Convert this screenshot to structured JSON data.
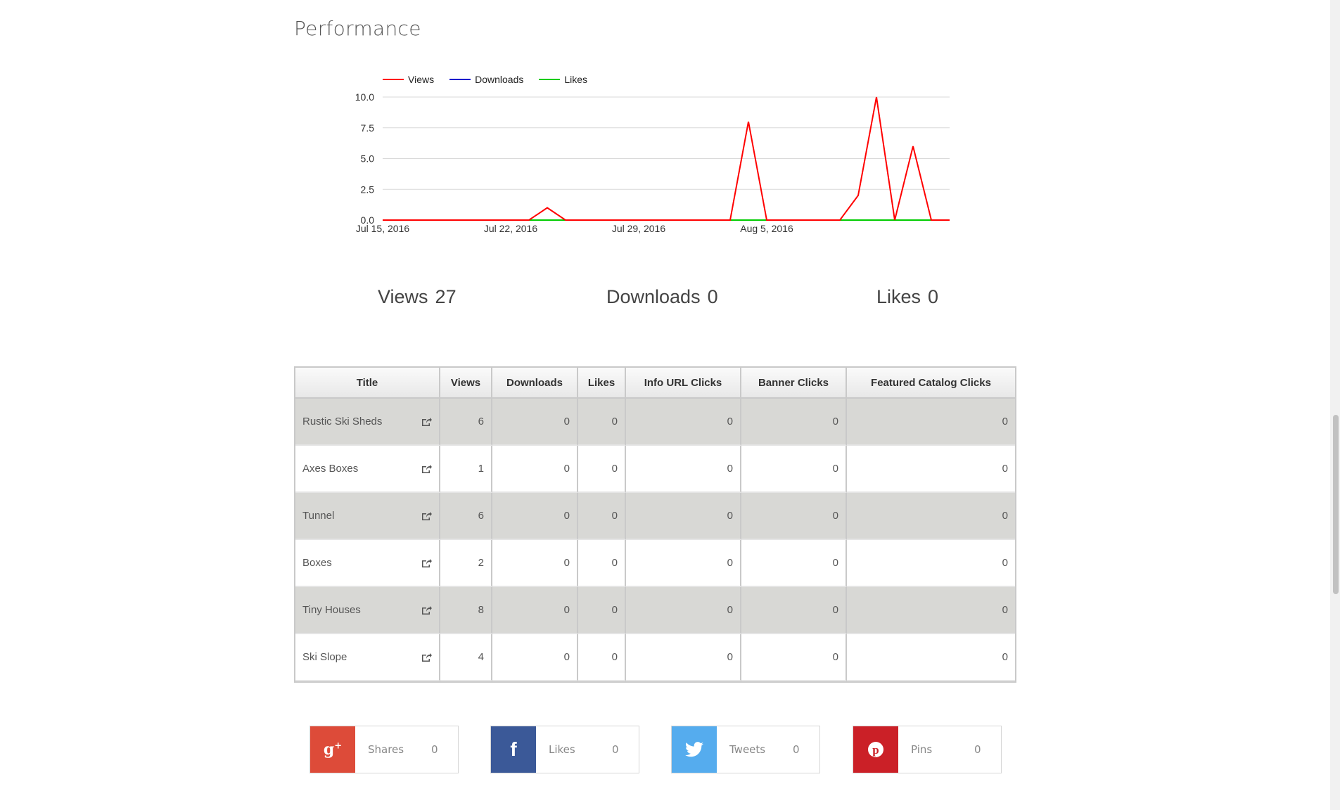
{
  "page": {
    "title": "Performance"
  },
  "chart_data": {
    "type": "line",
    "x_tick_labels": [
      "Jul 15, 2016",
      "Jul 22, 2016",
      "Jul 29, 2016",
      "Aug 5, 2016"
    ],
    "x": [
      "2016-07-15",
      "2016-07-16",
      "2016-07-17",
      "2016-07-18",
      "2016-07-19",
      "2016-07-20",
      "2016-07-21",
      "2016-07-22",
      "2016-07-23",
      "2016-07-24",
      "2016-07-25",
      "2016-07-26",
      "2016-07-27",
      "2016-07-28",
      "2016-07-29",
      "2016-07-30",
      "2016-07-31",
      "2016-08-01",
      "2016-08-02",
      "2016-08-03",
      "2016-08-04",
      "2016-08-05",
      "2016-08-06",
      "2016-08-07",
      "2016-08-08",
      "2016-08-09",
      "2016-08-10",
      "2016-08-11",
      "2016-08-12",
      "2016-08-13",
      "2016-08-14",
      "2016-08-15"
    ],
    "y_ticks": [
      "0.0",
      "2.5",
      "5.0",
      "7.5",
      "10.0"
    ],
    "ylim": [
      0,
      10
    ],
    "series": [
      {
        "name": "Views",
        "color": "#ff0000",
        "values": [
          0,
          0,
          0,
          0,
          0,
          0,
          0,
          0,
          0,
          1,
          0,
          0,
          0,
          0,
          0,
          0,
          0,
          0,
          0,
          0,
          8,
          0,
          0,
          0,
          0,
          0,
          2,
          10,
          0,
          6,
          0,
          0
        ]
      },
      {
        "name": "Downloads",
        "color": "#0000cc",
        "values": [
          0,
          0,
          0,
          0,
          0,
          0,
          0,
          0,
          0,
          0,
          0,
          0,
          0,
          0,
          0,
          0,
          0,
          0,
          0,
          0,
          0,
          0,
          0,
          0,
          0,
          0,
          0,
          0,
          0,
          0,
          0,
          0
        ]
      },
      {
        "name": "Likes",
        "color": "#00cc00",
        "values": [
          0,
          0,
          0,
          0,
          0,
          0,
          0,
          0,
          0,
          0,
          0,
          0,
          0,
          0,
          0,
          0,
          0,
          0,
          0,
          0,
          0,
          0,
          0,
          0,
          0,
          0,
          0,
          0,
          0,
          0,
          0,
          0
        ]
      }
    ],
    "legend": "top-left",
    "grid": true
  },
  "stats": {
    "views_label": "Views",
    "views_value": "27",
    "downloads_label": "Downloads",
    "downloads_value": "0",
    "likes_label": "Likes",
    "likes_value": "0"
  },
  "table": {
    "headers": [
      "Title",
      "Views",
      "Downloads",
      "Likes",
      "Info URL Clicks",
      "Banner Clicks",
      "Featured Catalog Clicks"
    ],
    "rows": [
      [
        "Rustic Ski Sheds",
        "6",
        "0",
        "0",
        "0",
        "0",
        "0"
      ],
      [
        "Axes Boxes",
        "1",
        "0",
        "0",
        "0",
        "0",
        "0"
      ],
      [
        "Tunnel",
        "6",
        "0",
        "0",
        "0",
        "0",
        "0"
      ],
      [
        "Boxes",
        "2",
        "0",
        "0",
        "0",
        "0",
        "0"
      ],
      [
        "Tiny Houses",
        "8",
        "0",
        "0",
        "0",
        "0",
        "0"
      ],
      [
        "Ski Slope",
        "4",
        "0",
        "0",
        "0",
        "0",
        "0"
      ]
    ]
  },
  "social": [
    {
      "network": "google-plus",
      "icon": "g+",
      "color": "#dd4b39",
      "label": "Shares",
      "count": "0"
    },
    {
      "network": "facebook",
      "icon": "f",
      "color": "#3b5998",
      "label": "Likes",
      "count": "0"
    },
    {
      "network": "twitter",
      "icon": "twitter-bird",
      "color": "#55acee",
      "label": "Tweets",
      "count": "0"
    },
    {
      "network": "pinterest",
      "icon": "p",
      "color": "#cb2027",
      "label": "Pins",
      "count": "0"
    }
  ]
}
